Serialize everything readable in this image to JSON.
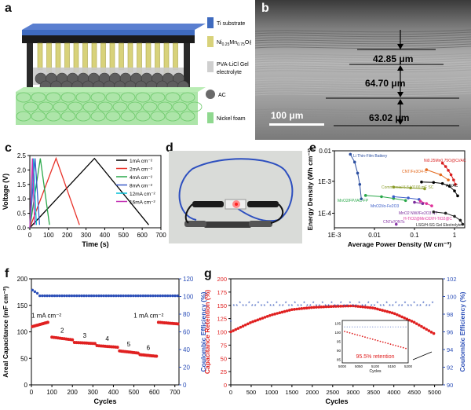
{
  "panel_labels": {
    "a": "a",
    "b": "b",
    "c": "c",
    "d": "d",
    "e": "e",
    "f": "f",
    "g": "g"
  },
  "panel_a": {
    "legend": [
      "Ti substrate",
      "Ni0.25Mn0.75O@C",
      "PVA-LiCl Gel electrolyte",
      "AC",
      "Nickel foam"
    ],
    "colors": {
      "ti": "#3f6bbf",
      "nimno": "#d8d27a",
      "gel": "#cfcfcf",
      "ac": "#6a6a6a",
      "foam": "#8fd88f"
    }
  },
  "panel_b": {
    "thicknesses": [
      "42.85 μm",
      "64.70 μm",
      "63.02 μm"
    ],
    "scale_bar": "100 μm"
  },
  "chart_data": [
    {
      "id": "c",
      "type": "line",
      "xlabel": "Time (s)",
      "ylabel": "Voltage (V)",
      "xlim": [
        0,
        700
      ],
      "ylim": [
        0,
        2.5
      ],
      "xticks": [
        0,
        100,
        200,
        300,
        400,
        500,
        600,
        700
      ],
      "yticks": [
        0.0,
        0.5,
        1.0,
        1.5,
        2.0,
        2.5
      ],
      "series": [
        {
          "name": "1mA cm⁻²",
          "color": "#000000",
          "x": [
            0,
            345,
            635
          ],
          "y": [
            0,
            2.4,
            0.1
          ]
        },
        {
          "name": "2mA cm⁻²",
          "color": "#e8322a",
          "x": [
            0,
            140,
            265
          ],
          "y": [
            0,
            2.4,
            0.1
          ]
        },
        {
          "name": "4mA cm⁻²",
          "color": "#2aa84a",
          "x": [
            0,
            56,
            105
          ],
          "y": [
            0,
            2.4,
            0.1
          ]
        },
        {
          "name": "8mA cm⁻²",
          "color": "#3a5cc8",
          "x": [
            0,
            28,
            52
          ],
          "y": [
            0,
            2.4,
            0.1
          ]
        },
        {
          "name": "12mA cm⁻²",
          "color": "#00bcd4",
          "x": [
            0,
            19,
            35
          ],
          "y": [
            0,
            2.4,
            0.1
          ]
        },
        {
          "name": "16mA cm⁻²",
          "color": "#c22fb4",
          "x": [
            0,
            14,
            26
          ],
          "y": [
            0,
            2.4,
            0.1
          ]
        }
      ]
    },
    {
      "id": "e",
      "type": "line",
      "xscale": "log",
      "yscale": "log",
      "xlabel": "Average Power Density (W cm⁻³)",
      "ylabel": "Energy Density (Wh cm⁻³)",
      "xlim": [
        0.001,
        1.8
      ],
      "ylim": [
        3.5e-05,
        0.009
      ],
      "xtick_labels": [
        "1E-3",
        "0.01",
        "0.1",
        "1"
      ],
      "ytick_labels": [
        "1E-4",
        "1E-3",
        "0.01"
      ],
      "series": [
        {
          "name": "Li Thin-Film Battery",
          "color": "#2b4ea0",
          "x": [
            0.0025,
            0.0032,
            0.0038,
            0.0043,
            0.0047
          ],
          "y": [
            0.007,
            0.004,
            0.0018,
            0.0008,
            0.00028
          ]
        },
        {
          "name": "Ni0.25Mn0.75O@C//AC",
          "color": "#d81e1e",
          "x": [
            0.5,
            0.6,
            0.7,
            0.82,
            0.95,
            1.05
          ],
          "y": [
            0.0037,
            0.0029,
            0.0022,
            0.0016,
            0.0011,
            0.0008
          ]
        },
        {
          "name": "CNT/Fe3O4-C",
          "color": "#e36a1e",
          "x": [
            0.2,
            0.45,
            0.7
          ],
          "y": [
            0.0023,
            0.0016,
            0.0011
          ]
        },
        {
          "name": "Commercial 5.5 V/100 mF SC",
          "color": "#8a9c2a",
          "x": [
            0.03,
            0.08,
            0.18
          ],
          "y": [
            0.00066,
            0.00062,
            0.00058
          ]
        },
        {
          "name": "AC/AC",
          "color": "#000000",
          "x": [
            0.15,
            0.3,
            0.5,
            0.75,
            1.0,
            1.2
          ],
          "y": [
            0.00095,
            0.00092,
            0.00085,
            0.0007,
            0.0005,
            0.00035
          ]
        },
        {
          "name": "MnO2/FP//AC-FP",
          "color": "#2aa84a",
          "x": [
            0.006,
            0.015,
            0.03,
            0.06
          ],
          "y": [
            0.00036,
            0.00033,
            0.00029,
            0.00025
          ]
        },
        {
          "name": "MnO2//α-Fe2O3",
          "color": "#3a5cc8",
          "x": [
            0.03,
            0.07,
            0.13
          ],
          "y": [
            0.00033,
            0.0003,
            0.00027
          ]
        },
        {
          "name": "MnO2 NW//Fe2O3 NT",
          "color": "#7a2c9c",
          "x": [
            0.1,
            0.16
          ],
          "y": [
            0.00022,
            0.0002
          ]
        },
        {
          "name": "H-TiO2@MnO2//H-TiO2@C",
          "color": "#e0329a",
          "x": [
            0.14,
            0.2,
            0.27
          ],
          "y": [
            0.00024,
            0.0002,
            0.00017
          ]
        },
        {
          "name": "LSG/H-SG Gel Electrolyte",
          "color": "#222222",
          "x": [
            0.3,
            0.6,
            1.0,
            1.4,
            1.6
          ],
          "y": [
            0.00011,
            0.0001,
            8e-05,
            6e-05,
            4.5e-05
          ]
        },
        {
          "name": "CNTs//ONTs",
          "color": "#8a3aa8",
          "x": [
            0.035
          ],
          "y": [
            4.5e-05
          ]
        }
      ]
    },
    {
      "id": "f",
      "type": "scatter",
      "xlabel": "Cycles",
      "ylabel": "Areal Capacitance (mF cm⁻²)",
      "y2label": "Coulombic Efficiency (%)",
      "xlim": [
        0,
        720
      ],
      "ylim": [
        0,
        200
      ],
      "y2lim": [
        0,
        120
      ],
      "xticks": [
        0,
        100,
        200,
        300,
        400,
        500,
        600,
        700
      ],
      "yticks": [
        0,
        50,
        100,
        150,
        200
      ],
      "y2ticks": [
        0,
        20,
        40,
        60,
        80,
        100,
        120
      ],
      "annotations": [
        "1 mA cm⁻²",
        "2",
        "3",
        "4",
        "5",
        "6",
        "1 mA cm⁻²"
      ],
      "segments": [
        {
          "x": [
            5,
            80
          ],
          "y": [
            110,
            118
          ]
        },
        {
          "x": [
            100,
            200
          ],
          "y": [
            90,
            85
          ]
        },
        {
          "x": [
            210,
            310
          ],
          "y": [
            80,
            78
          ]
        },
        {
          "x": [
            320,
            420
          ],
          "y": [
            74,
            71
          ]
        },
        {
          "x": [
            430,
            520
          ],
          "y": [
            64,
            60
          ]
        },
        {
          "x": [
            530,
            610
          ],
          "y": [
            57,
            54
          ]
        },
        {
          "x": [
            620,
            715
          ],
          "y": [
            118,
            115
          ]
        }
      ],
      "efficiency_series": {
        "name": "Coulombic Efficiency",
        "value": 100,
        "initial": 108
      },
      "colors": {
        "capacitance": "#e02020",
        "efficiency": "#2c4fb8"
      }
    },
    {
      "id": "g",
      "type": "scatter",
      "xlabel": "Cycles",
      "ylabel": "Capacitance Retention (%)",
      "y2label": "Coulombic Efficiency (%)",
      "xlim": [
        0,
        5200
      ],
      "ylim": [
        0,
        200
      ],
      "y2lim": [
        90,
        102
      ],
      "xticks": [
        0,
        500,
        1000,
        1500,
        2000,
        2500,
        3000,
        3500,
        4000,
        4500,
        5000
      ],
      "yticks": [
        0,
        25,
        50,
        75,
        100,
        125,
        150,
        175,
        200
      ],
      "y2ticks": [
        90,
        92,
        94,
        96,
        98,
        100,
        102
      ],
      "retention": {
        "x": [
          0,
          500,
          1000,
          1500,
          2000,
          2500,
          3000,
          3500,
          4000,
          4500,
          5000
        ],
        "y": [
          100,
          118,
          132,
          142,
          146,
          148,
          149,
          145,
          135,
          118,
          96
        ]
      },
      "efficiency": {
        "value": 99.0,
        "initial": 98.4
      },
      "inset": {
        "label": "95.5% retention",
        "xlabel": "Cycles",
        "xtick_labels": [
          "5000",
          "5050",
          "5100",
          "5150",
          "5200"
        ],
        "ytick_labels": [
          "105",
          "100",
          "95",
          "90",
          "85"
        ]
      },
      "colors": {
        "retention": "#e02020",
        "efficiency": "#2c4fb8"
      }
    }
  ],
  "panel_d": {
    "description_free": true
  }
}
